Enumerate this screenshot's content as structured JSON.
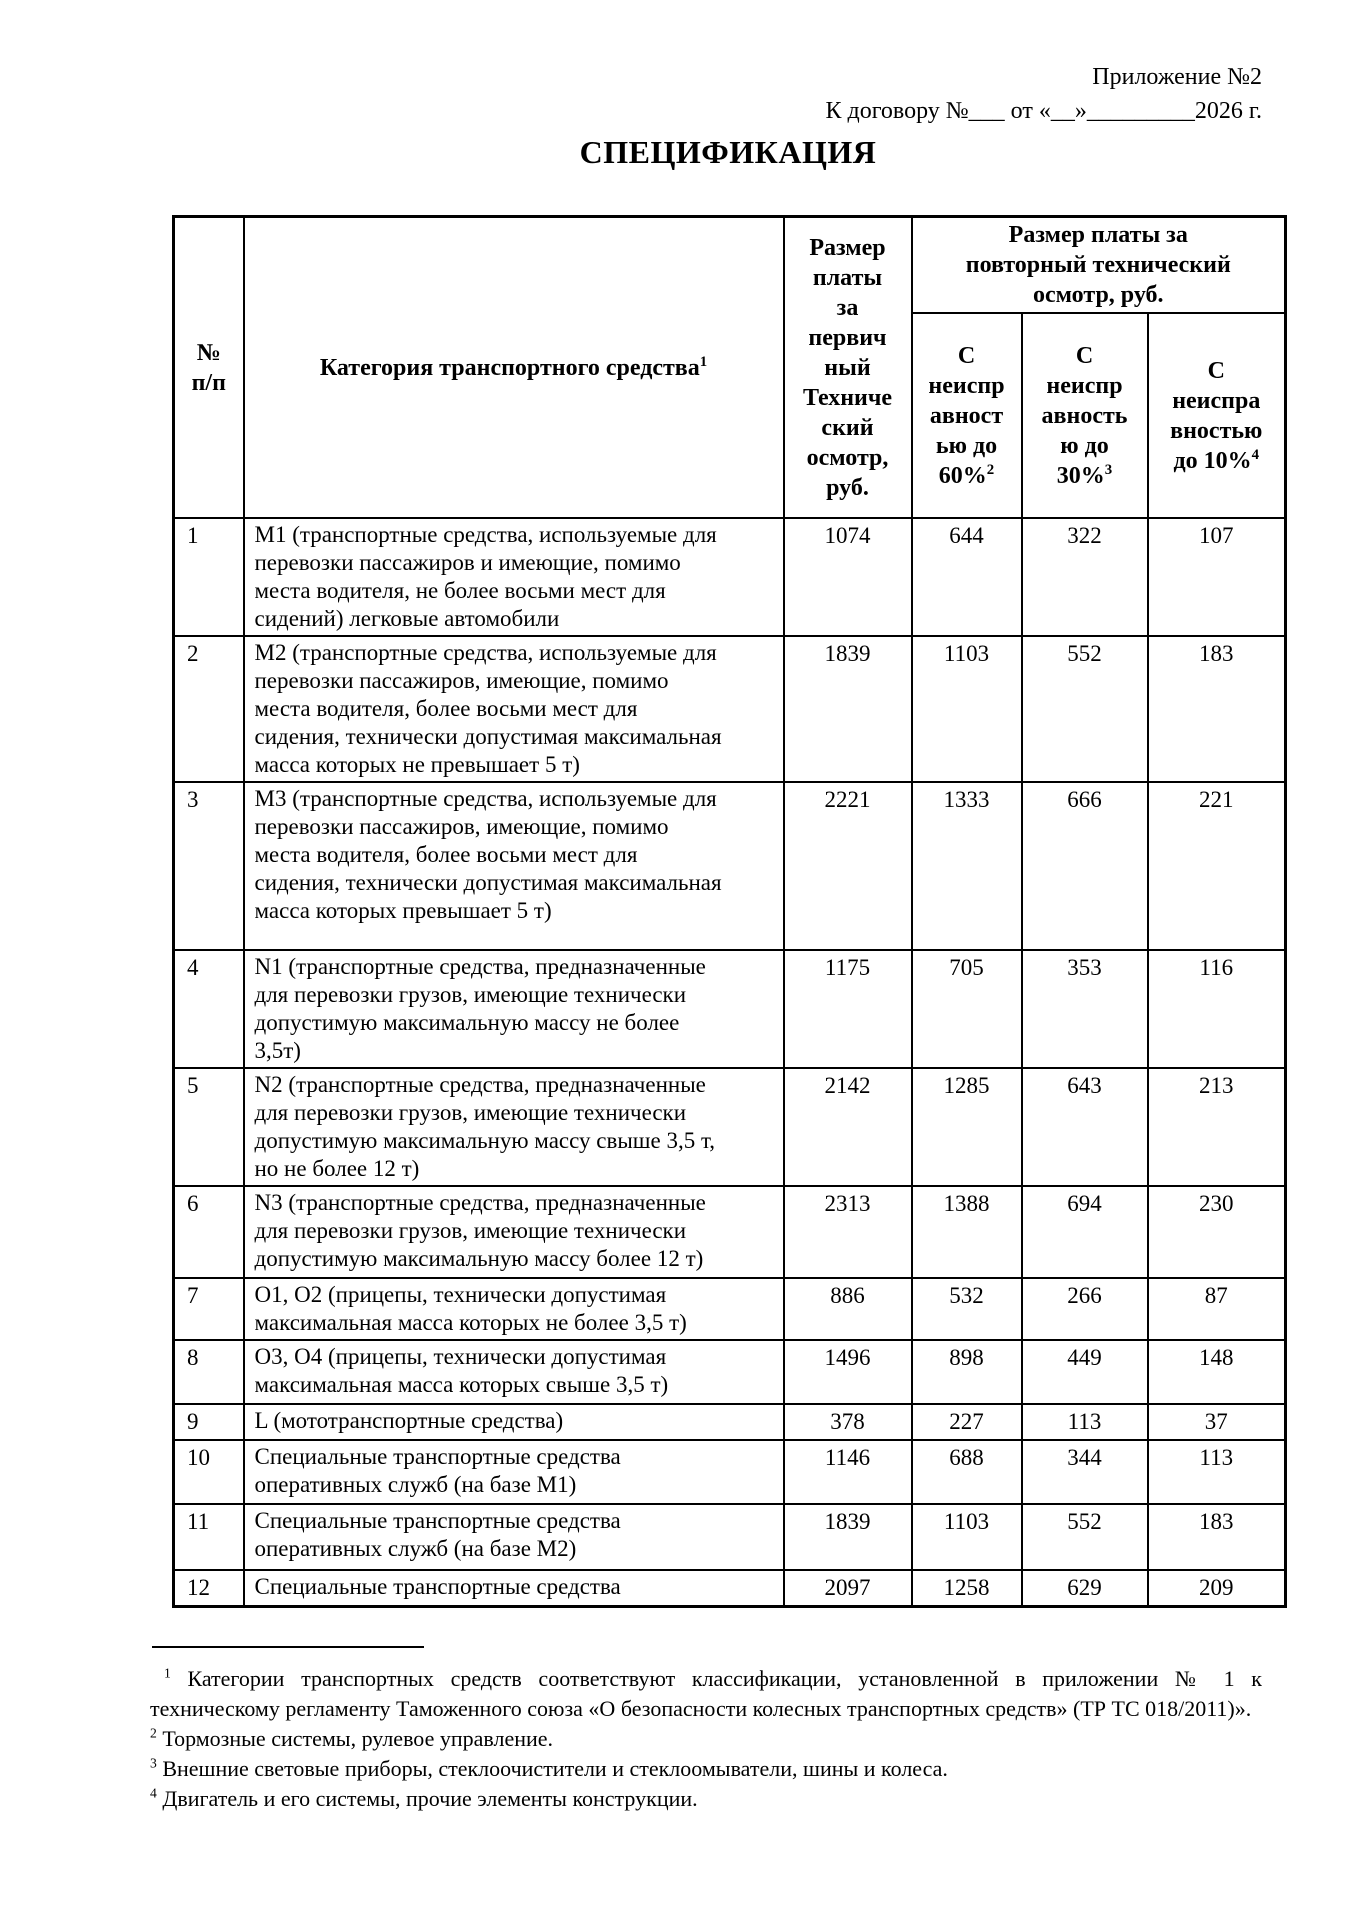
{
  "page": {
    "appendix_line": "Приложение №2",
    "contract_line": "К договору №___ от «__»_________2026 г.",
    "title": "СПЕЦИФИКАЦИЯ"
  },
  "table": {
    "col_headers": {
      "num": "№\nп/п",
      "category": {
        "text": "Категория транспортного средства",
        "sup": "1"
      },
      "initial": "Размер\nплаты\nза\nпервич\nный\nТехниче\nский\nосмотр,\nруб.",
      "repeat_group": "Размер платы за\nповторный технический\nосмотр, руб.",
      "repeat_cols": [
        {
          "text": "С\nнеиспр\nавност\nью до\n60%",
          "sup": "2"
        },
        {
          "text": "С\nнеиспр\nавность\nю до\n30%",
          "sup": "3"
        },
        {
          "text": "С\nнеиспра\nвностью\nдо 10%",
          "sup": "4"
        }
      ]
    },
    "rows": [
      {
        "num": "1",
        "category": "М1 (транспортные средства, используемые для\nперевозки пассажиров и имеющие, помимо\nместа водителя, не более восьми мест для\nсидений) легковые автомобили",
        "initial": "1074",
        "upto60": "644",
        "upto30": "322",
        "upto10": "107"
      },
      {
        "num": "2",
        "category": "М2 (транспортные средства, используемые для\nперевозки пассажиров, имеющие, помимо\nместа водителя, более восьми мест для\nсидения, технически допустимая максимальная\nмасса которых не превышает 5 т)",
        "initial": "1839",
        "upto60": "1103",
        "upto30": "552",
        "upto10": "183"
      },
      {
        "num": "3",
        "category": "М3 (транспортные средства, используемые для\nперевозки пассажиров, имеющие, помимо\nместа водителя, более восьми мест для\nсидения, технически допустимая максимальная\nмасса которых превышает 5 т)",
        "initial": "2221",
        "upto60": "1333",
        "upto30": "666",
        "upto10": "221"
      },
      {
        "num": "4",
        "category": "N1 (транспортные средства, предназначенные\nдля перевозки грузов, имеющие технически\nдопустимую максимальную массу не более\n3,5т)",
        "initial": "1175",
        "upto60": "705",
        "upto30": "353",
        "upto10": "116"
      },
      {
        "num": "5",
        "category": "N2 (транспортные средства, предназначенные\nдля перевозки грузов, имеющие технически\nдопустимую максимальную массу свыше 3,5 т,\nно не более 12 т)",
        "initial": "2142",
        "upto60": "1285",
        "upto30": "643",
        "upto10": "213"
      },
      {
        "num": "6",
        "category": "N3 (транспортные средства, предназначенные\nдля перевозки грузов, имеющие технически\nдопустимую максимальную массу более 12 т)",
        "initial": "2313",
        "upto60": "1388",
        "upto30": "694",
        "upto10": "230"
      },
      {
        "num": "7",
        "category": "О1, О2 (прицепы, технически допустимая\nмаксимальная масса которых не более 3,5 т)",
        "initial": "886",
        "upto60": "532",
        "upto30": "266",
        "upto10": "87"
      },
      {
        "num": "8",
        "category": "О3, О4 (прицепы, технически допустимая\nмаксимальная масса которых свыше 3,5 т)",
        "initial": "1496",
        "upto60": "898",
        "upto30": "449",
        "upto10": "148"
      },
      {
        "num": "9",
        "category": "L (мототранспортные средства)",
        "initial": "378",
        "upto60": "227",
        "upto30": "113",
        "upto10": "37"
      },
      {
        "num": "10",
        "category": "Специальные транспортные средства\nоперативных служб (на базе М1)",
        "initial": "1146",
        "upto60": "688",
        "upto30": "344",
        "upto10": "113"
      },
      {
        "num": "11",
        "category": "Специальные транспортные средства\nоперативных служб (на базе М2)",
        "initial": "1839",
        "upto60": "1103",
        "upto30": "552",
        "upto10": "183"
      },
      {
        "num": "12",
        "category": "Специальные транспортные средства",
        "initial": "2097",
        "upto60": "1258",
        "upto30": "629",
        "upto10": "209"
      }
    ]
  },
  "footnotes": [
    {
      "sup": "1",
      "text": "Категории транспортных средств соответствуют классификации, установленной в приложении № 1 к техническому регламенту Таможенного союза «О безопасности колесных транспортных средств» (ТР ТС 018/2011)»."
    },
    {
      "sup": "2",
      "text": "Тормозные системы, рулевое управление."
    },
    {
      "sup": "3",
      "text": "Внешние световые приборы, стеклоочистители и стеклоомыватели, шины и колеса."
    },
    {
      "sup": "4",
      "text": "Двигатель и его системы, прочие элементы конструкции."
    }
  ]
}
